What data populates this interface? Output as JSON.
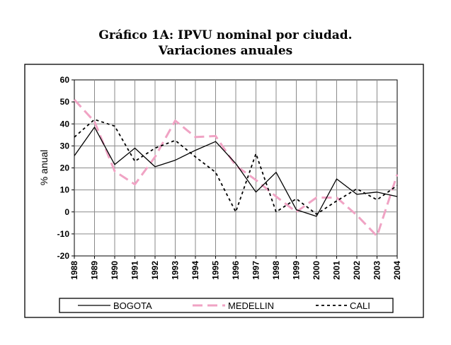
{
  "chart_data": {
    "type": "line",
    "title": "Gráfico 1A: IPVU nominal por ciudad.",
    "subtitle": "Variaciones anuales",
    "xlabel": "",
    "ylabel": "% anual",
    "ylim": [
      -20,
      60
    ],
    "yticks": [
      -20,
      -10,
      0,
      10,
      20,
      30,
      40,
      50,
      60
    ],
    "grid": true,
    "legend_position": "bottom",
    "x": [
      "1988",
      "1989",
      "1990",
      "1991",
      "1992",
      "1993",
      "1994",
      "1995",
      "1996",
      "1997",
      "1998",
      "1999",
      "2000",
      "2001",
      "2002",
      "2003",
      "2004"
    ],
    "series": [
      {
        "name": "BOGOTA",
        "style": "solid",
        "color": "#000000",
        "values": [
          25.5,
          38.5,
          21.5,
          29,
          20.5,
          23.5,
          28,
          32,
          22,
          9,
          18,
          1,
          -2,
          15,
          8,
          9,
          7
        ]
      },
      {
        "name": "MEDELLIN",
        "style": "dashed-long",
        "color": "#f0a3c4",
        "values": [
          51,
          41,
          18.5,
          12.5,
          25,
          41.5,
          34,
          34.5,
          21,
          14.5,
          7,
          0,
          6.5,
          6.5,
          -1.5,
          -11,
          17
        ]
      },
      {
        "name": "CALI",
        "style": "dashed-short",
        "color": "#000000",
        "values": [
          34,
          42,
          39,
          23,
          29,
          32.5,
          25,
          18,
          0,
          26.5,
          0,
          6,
          -1,
          5,
          10.5,
          5.5,
          12
        ]
      }
    ]
  }
}
